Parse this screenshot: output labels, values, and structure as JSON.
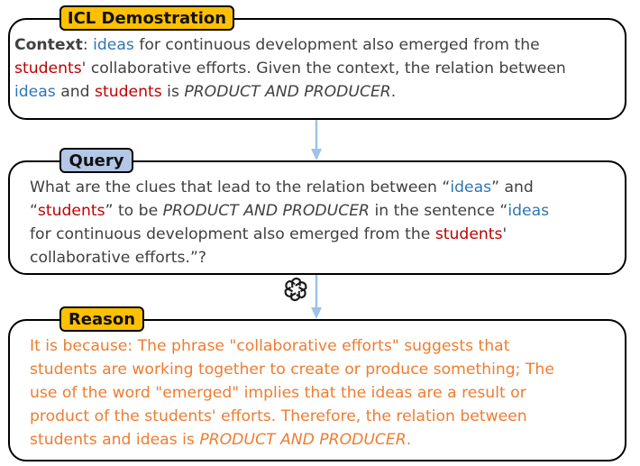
{
  "icl": {
    "tag": "ICL Demostration",
    "context_label": "Context",
    "context_colon": ":",
    "w_ideas": "ideas",
    "line1_rest": "for continuous development also emerged from the",
    "w_students": "students",
    "line2_rest": "' collaborative efforts. Given the context, the relation between",
    "and_word": "and",
    "is_word": "is",
    "relation": "PRODUCT AND PRODUCER",
    "period": "."
  },
  "query": {
    "tag": "Query",
    "line1_pre": "What are the clues that lead to the relation between “",
    "w_ideas": "ideas",
    "line1_post": "” and",
    "q_open": "“",
    "w_students": "students",
    "line2_mid": "” to be",
    "relation": "PRODUCT AND PRODUCER",
    "line2_post": "in the sentence “",
    "line3_pre": "for continuous development also emerged from the",
    "line3_post": "'",
    "line4": "collaborative efforts.”?"
  },
  "reason": {
    "tag": "Reason",
    "line1": "It is because: The phrase \"collaborative efforts\" suggests that",
    "line2": "students are working together to create or produce something; The",
    "line3": "use of the word \"emerged\" implies that the ideas are a result or",
    "line4": "product of the students' efforts. Therefore, the relation between",
    "line5_pre": "students and ideas is",
    "relation": "PRODUCT AND PRODUCER",
    "period": "."
  },
  "colors": {
    "entity_head": "#2e75b6",
    "entity_tail": "#c00000",
    "reason_text": "#ed7d31",
    "tag_yellow": "#ffc000",
    "tag_blue": "#b4c7e7",
    "arrow": "#9dc3e6"
  },
  "icons": {
    "model_logo": "openai-logo-icon"
  }
}
